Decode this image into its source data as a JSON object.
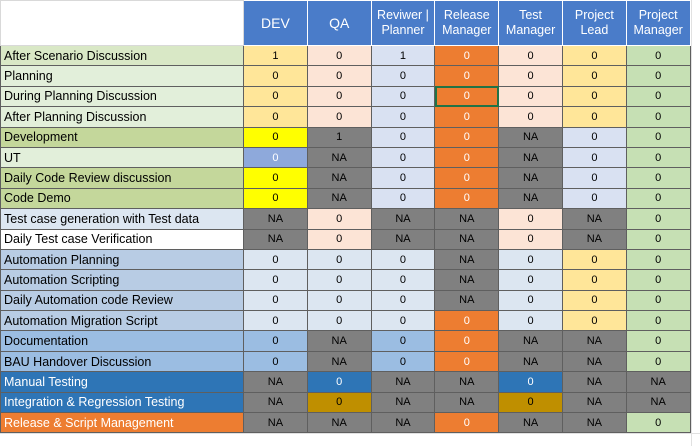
{
  "headers": [
    "DEV",
    "QA",
    "Reviwer | Planner",
    "Release Manager",
    "Test Manager",
    "Project Lead",
    "Project Manager"
  ],
  "colors": {
    "header_bg": "#4a7cc9",
    "label_green": "#d9e8c6",
    "label_mid_green": "#c4d79b",
    "label_light_blue": "#dce6f1",
    "label_blue": "#b8cce4",
    "label_mid_blue": "#9bbde2",
    "label_dark_blue": "#2e75b6",
    "label_orange": "#ed7d31",
    "val_orange": "#ed7d31",
    "val_yellow": "#ffff00",
    "val_lightyellow": "#ffe699",
    "val_peach": "#fce4d6",
    "val_lavender": "#d9e1f2",
    "val_green": "#e2efda",
    "val_gray": "#808080",
    "val_gray_light": "#a6a6a6",
    "val_steel": "#8ea9db",
    "val_blue": "#2e75b6",
    "val_gold": "#bf8f00",
    "val_white": "#ffffff"
  },
  "rows": [
    {
      "label": "After Scenario Discussion",
      "lc": "#d9e8c6",
      "lt": "#000000",
      "cells": [
        [
          "1",
          "#ffe699",
          "#000"
        ],
        [
          "0",
          "#fce4d6",
          "#000"
        ],
        [
          "1",
          "#d9e1f2",
          "#000"
        ],
        [
          "0",
          "#ed7d31",
          "#ffffff"
        ],
        [
          "0",
          "#fce4d6",
          "#000"
        ],
        [
          "0",
          "#ffe699",
          "#000"
        ],
        [
          "0",
          "#c6e0b4",
          "#000"
        ]
      ]
    },
    {
      "label": "Planning",
      "lc": "#e2efda",
      "lt": "#000000",
      "cells": [
        [
          "0",
          "#ffe699",
          "#000"
        ],
        [
          "0",
          "#fce4d6",
          "#000"
        ],
        [
          "0",
          "#d9e1f2",
          "#000"
        ],
        [
          "0",
          "#ed7d31",
          "#ffffff"
        ],
        [
          "0",
          "#fce4d6",
          "#000"
        ],
        [
          "0",
          "#ffe699",
          "#000"
        ],
        [
          "0",
          "#c6e0b4",
          "#000"
        ]
      ]
    },
    {
      "label": "During Planning Discussion",
      "lc": "#e2efda",
      "lt": "#000000",
      "cells": [
        [
          "0",
          "#ffe699",
          "#000"
        ],
        [
          "0",
          "#fce4d6",
          "#000"
        ],
        [
          "0",
          "#d9e1f2",
          "#000"
        ],
        [
          "0",
          "#ed7d31",
          "#ffffff"
        ],
        [
          "0",
          "#fce4d6",
          "#000"
        ],
        [
          "0",
          "#ffe699",
          "#000"
        ],
        [
          "0",
          "#c6e0b4",
          "#000"
        ]
      ]
    },
    {
      "label": "After Planning Discussion",
      "lc": "#e2efda",
      "lt": "#000000",
      "cells": [
        [
          "0",
          "#ffe699",
          "#000"
        ],
        [
          "0",
          "#fce4d6",
          "#000"
        ],
        [
          "0",
          "#d9e1f2",
          "#000"
        ],
        [
          "0",
          "#ed7d31",
          "#ffffff"
        ],
        [
          "0",
          "#fce4d6",
          "#000"
        ],
        [
          "0",
          "#ffe699",
          "#000"
        ],
        [
          "0",
          "#c6e0b4",
          "#000"
        ]
      ]
    },
    {
      "label": "Development",
      "lc": "#c4d79b",
      "lt": "#000000",
      "cells": [
        [
          "0",
          "#ffff00",
          "#000"
        ],
        [
          "1",
          "#808080",
          "#000"
        ],
        [
          "0",
          "#d9e1f2",
          "#000"
        ],
        [
          "0",
          "#ed7d31",
          "#ffffff"
        ],
        [
          "NA",
          "#808080",
          "#000"
        ],
        [
          "0",
          "#d9e1f2",
          "#000"
        ],
        [
          "0",
          "#c6e0b4",
          "#000"
        ]
      ]
    },
    {
      "label": "UT",
      "lc": "#e2efda",
      "lt": "#000000",
      "cells": [
        [
          "0",
          "#8ea9db",
          "#ffffff"
        ],
        [
          "NA",
          "#808080",
          "#000"
        ],
        [
          "0",
          "#d9e1f2",
          "#000"
        ],
        [
          "0",
          "#ed7d31",
          "#ffffff"
        ],
        [
          "NA",
          "#808080",
          "#000"
        ],
        [
          "0",
          "#d9e1f2",
          "#000"
        ],
        [
          "0",
          "#c6e0b4",
          "#000"
        ]
      ]
    },
    {
      "label": "Daily Code Review discussion",
      "lc": "#c4d79b",
      "lt": "#000000",
      "cells": [
        [
          "0",
          "#ffff00",
          "#000"
        ],
        [
          "NA",
          "#808080",
          "#000"
        ],
        [
          "0",
          "#d9e1f2",
          "#000"
        ],
        [
          "0",
          "#ed7d31",
          "#ffffff"
        ],
        [
          "NA",
          "#808080",
          "#000"
        ],
        [
          "0",
          "#d9e1f2",
          "#000"
        ],
        [
          "0",
          "#c6e0b4",
          "#000"
        ]
      ]
    },
    {
      "label": "Code Demo",
      "lc": "#c4d79b",
      "lt": "#000000",
      "cells": [
        [
          "0",
          "#ffff00",
          "#000"
        ],
        [
          "NA",
          "#808080",
          "#000"
        ],
        [
          "0",
          "#d9e1f2",
          "#000"
        ],
        [
          "0",
          "#ed7d31",
          "#ffffff"
        ],
        [
          "NA",
          "#808080",
          "#000"
        ],
        [
          "0",
          "#d9e1f2",
          "#000"
        ],
        [
          "0",
          "#c6e0b4",
          "#000"
        ]
      ]
    },
    {
      "label": "Test case generation with Test data",
      "lc": "#dce6f1",
      "lt": "#000000",
      "cells": [
        [
          "NA",
          "#808080",
          "#000"
        ],
        [
          "0",
          "#fce4d6",
          "#000"
        ],
        [
          "NA",
          "#808080",
          "#000"
        ],
        [
          "NA",
          "#808080",
          "#000"
        ],
        [
          "0",
          "#fce4d6",
          "#000"
        ],
        [
          "NA",
          "#808080",
          "#000"
        ],
        [
          "0",
          "#c6e0b4",
          "#000"
        ]
      ]
    },
    {
      "label": "Daily Test case Verification",
      "lc": "#ffffff",
      "lt": "#000000",
      "cells": [
        [
          "NA",
          "#808080",
          "#000"
        ],
        [
          "0",
          "#fce4d6",
          "#000"
        ],
        [
          "NA",
          "#808080",
          "#000"
        ],
        [
          "NA",
          "#808080",
          "#000"
        ],
        [
          "0",
          "#fce4d6",
          "#000"
        ],
        [
          "NA",
          "#808080",
          "#000"
        ],
        [
          "0",
          "#c6e0b4",
          "#000"
        ]
      ]
    },
    {
      "label": "Automation Planning",
      "lc": "#b8cce4",
      "lt": "#000000",
      "cells": [
        [
          "0",
          "#dce6f1",
          "#000"
        ],
        [
          "0",
          "#dce6f1",
          "#000"
        ],
        [
          "0",
          "#dce6f1",
          "#000"
        ],
        [
          "NA",
          "#808080",
          "#000"
        ],
        [
          "0",
          "#dce6f1",
          "#000"
        ],
        [
          "0",
          "#ffe699",
          "#000"
        ],
        [
          "0",
          "#c6e0b4",
          "#000"
        ]
      ]
    },
    {
      "label": "Automation Scripting",
      "lc": "#b8cce4",
      "lt": "#000000",
      "cells": [
        [
          "0",
          "#dce6f1",
          "#000"
        ],
        [
          "0",
          "#dce6f1",
          "#000"
        ],
        [
          "0",
          "#dce6f1",
          "#000"
        ],
        [
          "NA",
          "#808080",
          "#000"
        ],
        [
          "0",
          "#dce6f1",
          "#000"
        ],
        [
          "0",
          "#ffe699",
          "#000"
        ],
        [
          "0",
          "#c6e0b4",
          "#000"
        ]
      ]
    },
    {
      "label": "Daily Automation code Review",
      "lc": "#b8cce4",
      "lt": "#000000",
      "cells": [
        [
          "0",
          "#dce6f1",
          "#000"
        ],
        [
          "0",
          "#dce6f1",
          "#000"
        ],
        [
          "0",
          "#dce6f1",
          "#000"
        ],
        [
          "NA",
          "#808080",
          "#000"
        ],
        [
          "0",
          "#dce6f1",
          "#000"
        ],
        [
          "0",
          "#ffe699",
          "#000"
        ],
        [
          "0",
          "#c6e0b4",
          "#000"
        ]
      ]
    },
    {
      "label": "Automation Migration Script",
      "lc": "#b8cce4",
      "lt": "#000000",
      "cells": [
        [
          "0",
          "#dce6f1",
          "#000"
        ],
        [
          "0",
          "#dce6f1",
          "#000"
        ],
        [
          "0",
          "#dce6f1",
          "#000"
        ],
        [
          "0",
          "#ed7d31",
          "#ffffff"
        ],
        [
          "0",
          "#dce6f1",
          "#000"
        ],
        [
          "0",
          "#ffe699",
          "#000"
        ],
        [
          "0",
          "#c6e0b4",
          "#000"
        ]
      ]
    },
    {
      "label": "Documentation",
      "lc": "#9bbde2",
      "lt": "#000000",
      "cells": [
        [
          "0",
          "#9bbde2",
          "#000"
        ],
        [
          "NA",
          "#808080",
          "#000"
        ],
        [
          "0",
          "#9bbde2",
          "#000"
        ],
        [
          "0",
          "#ed7d31",
          "#ffffff"
        ],
        [
          "NA",
          "#808080",
          "#000"
        ],
        [
          "NA",
          "#808080",
          "#000"
        ],
        [
          "0",
          "#c6e0b4",
          "#000"
        ]
      ]
    },
    {
      "label": "BAU Handover Discussion",
      "lc": "#9bbde2",
      "lt": "#000000",
      "cells": [
        [
          "0",
          "#9bbde2",
          "#000"
        ],
        [
          "NA",
          "#808080",
          "#000"
        ],
        [
          "0",
          "#9bbde2",
          "#000"
        ],
        [
          "0",
          "#ed7d31",
          "#ffffff"
        ],
        [
          "NA",
          "#808080",
          "#000"
        ],
        [
          "NA",
          "#808080",
          "#000"
        ],
        [
          "0",
          "#c6e0b4",
          "#000"
        ]
      ]
    },
    {
      "label": "Manual Testing",
      "lc": "#2e75b6",
      "lt": "#ffffff",
      "cells": [
        [
          "NA",
          "#808080",
          "#000"
        ],
        [
          "0",
          "#2e75b6",
          "#ffffff"
        ],
        [
          "NA",
          "#808080",
          "#000"
        ],
        [
          "NA",
          "#808080",
          "#000"
        ],
        [
          "0",
          "#2e75b6",
          "#ffffff"
        ],
        [
          "NA",
          "#808080",
          "#000"
        ],
        [
          "NA",
          "#808080",
          "#000"
        ]
      ]
    },
    {
      "label": "Integration & Regression Testing",
      "lc": "#2e75b6",
      "lt": "#ffffff",
      "cells": [
        [
          "NA",
          "#808080",
          "#000"
        ],
        [
          "0",
          "#bf8f00",
          "#000"
        ],
        [
          "NA",
          "#808080",
          "#000"
        ],
        [
          "NA",
          "#808080",
          "#000"
        ],
        [
          "0",
          "#bf8f00",
          "#000"
        ],
        [
          "NA",
          "#808080",
          "#000"
        ],
        [
          "NA",
          "#808080",
          "#000"
        ]
      ]
    },
    {
      "label": "Release & Script Management",
      "lc": "#ed7d31",
      "lt": "#ffffff",
      "cells": [
        [
          "NA",
          "#808080",
          "#000"
        ],
        [
          "NA",
          "#808080",
          "#000"
        ],
        [
          "NA",
          "#808080",
          "#000"
        ],
        [
          "0",
          "#ed7d31",
          "#ffffff"
        ],
        [
          "NA",
          "#808080",
          "#000"
        ],
        [
          "NA",
          "#808080",
          "#000"
        ],
        [
          "0",
          "#c6e0b4",
          "#000"
        ]
      ]
    }
  ]
}
